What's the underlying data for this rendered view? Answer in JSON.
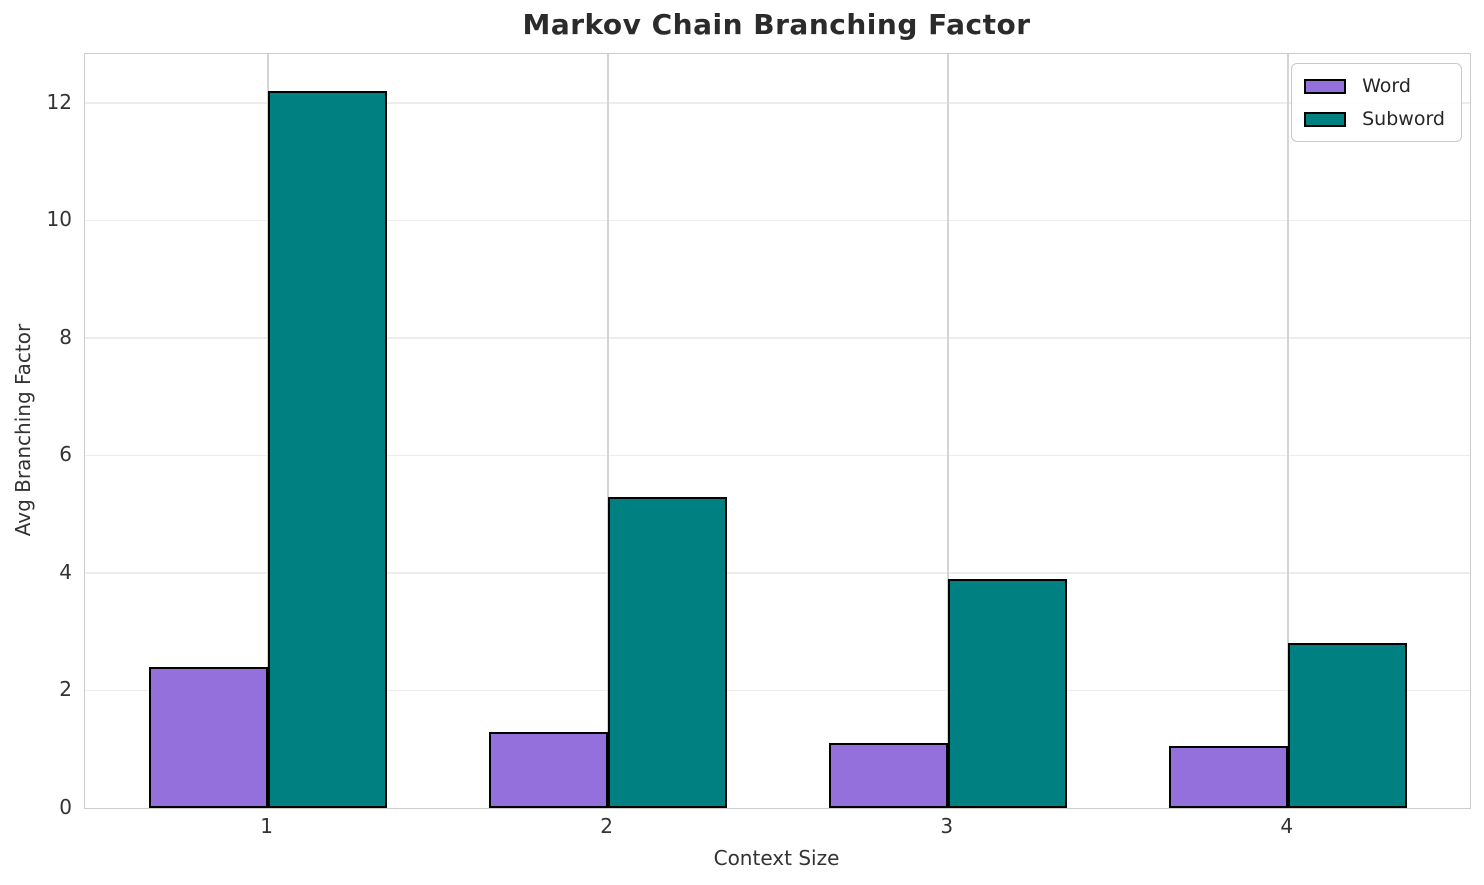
{
  "chart_data": {
    "type": "bar",
    "title": "Markov Chain Branching Factor",
    "xlabel": "Context Size",
    "ylabel": "Avg Branching Factor",
    "categories": [
      "1",
      "2",
      "3",
      "4"
    ],
    "x_positions": [
      1,
      2,
      3,
      4
    ],
    "series": [
      {
        "name": "Word",
        "color": "#9370DB",
        "edge_color": "#000000",
        "values": [
          2.4,
          1.3,
          1.1,
          1.05
        ]
      },
      {
        "name": "Subword",
        "color": "#008080",
        "edge_color": "#000000",
        "values": [
          12.2,
          5.3,
          3.9,
          2.8
        ]
      }
    ],
    "bar_width": 0.35,
    "xlim": [
      0.463,
      4.536
    ],
    "ylim": [
      0,
      12.83
    ],
    "yticks": [
      0,
      2,
      4,
      6,
      8,
      10,
      12
    ],
    "grid": {
      "horizontal": true,
      "vertical": true
    },
    "legend": {
      "position": "upper right"
    },
    "colors": {
      "text": "#262626",
      "spine": "#cccccc",
      "hgrid": "#ededed",
      "vgrid": "#d4d4d4",
      "background": "#ffffff"
    }
  }
}
